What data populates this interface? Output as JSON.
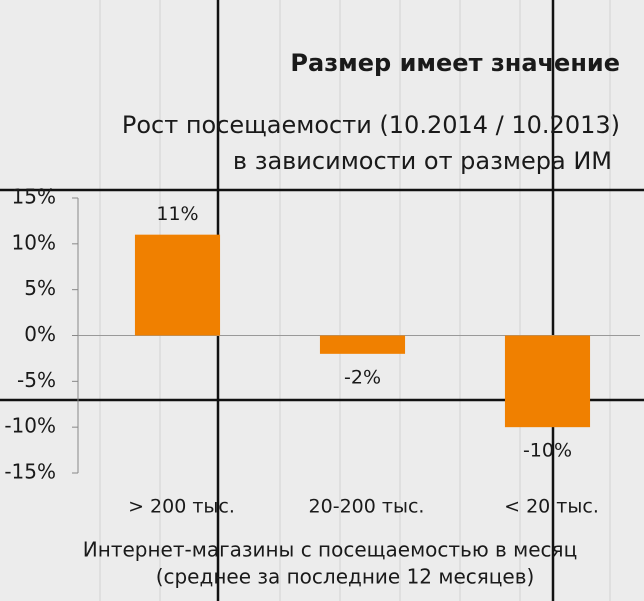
{
  "chart_data": {
    "type": "bar",
    "title": "Размер имеет значение",
    "subtitle": [
      "Рост посещаемости (10.2014 / 10.2013)",
      "в зависимости от размера ИМ"
    ],
    "categories": [
      "> 200 тыс.",
      "20-200 тыс.",
      "< 20 тыс."
    ],
    "values": [
      11,
      -2,
      -10
    ],
    "value_labels": [
      "11%",
      "-2%",
      "-10%"
    ],
    "color": "#f08000",
    "ylim": [
      -15,
      15
    ],
    "yticks": [
      {
        "value": -15,
        "label": "-15%"
      },
      {
        "value": -10,
        "label": "-10%"
      },
      {
        "value": -5,
        "label": "-5%"
      },
      {
        "value": 0,
        "label": "0%"
      },
      {
        "value": 5,
        "label": "5%"
      },
      {
        "value": 10,
        "label": "10%"
      },
      {
        "value": 15,
        "label": "15%"
      }
    ],
    "xlabel": [
      "Интернет-магазины с посещаемостью в месяц",
      "(среднее за последние 12 месяцев)"
    ]
  }
}
